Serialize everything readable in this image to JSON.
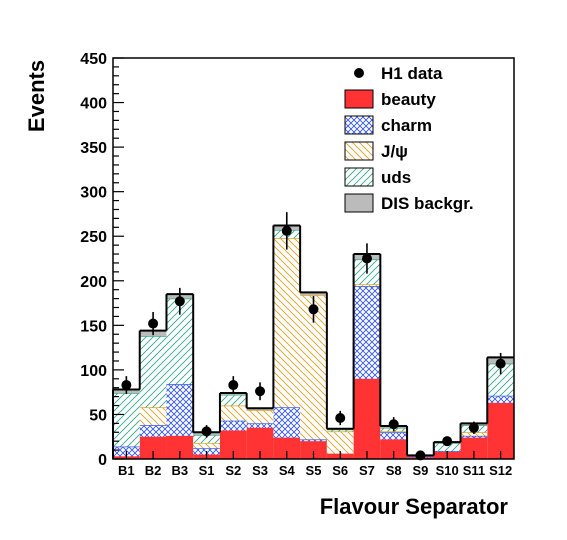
{
  "chart_data": {
    "type": "bar",
    "stacked": true,
    "title": "",
    "xlabel": "Flavour Separator",
    "ylabel": "Events",
    "ylim": [
      0,
      450
    ],
    "yticks": [
      0,
      50,
      100,
      150,
      200,
      250,
      300,
      350,
      400,
      450
    ],
    "grid": false,
    "legend_position": "top-right",
    "categories": [
      "B1",
      "B2",
      "B3",
      "S1",
      "S2",
      "S3",
      "S4",
      "S5",
      "S6",
      "S7",
      "S8",
      "S9",
      "S10",
      "S11",
      "S12"
    ],
    "series": [
      {
        "name": "beauty",
        "color": "#ff3333",
        "pattern": "solid",
        "values": [
          3,
          25,
          26,
          5,
          32,
          35,
          24,
          20,
          6,
          90,
          22,
          2,
          8,
          24,
          63
        ]
      },
      {
        "name": "charm",
        "color": "#3355ee",
        "pattern": "crosshatch",
        "values": [
          11,
          13,
          58,
          7,
          11,
          5,
          34,
          2,
          0,
          104,
          8,
          1,
          1,
          2,
          8
        ]
      },
      {
        "name": "J/ψ",
        "color": "#e0a020",
        "pattern": "hatch-down",
        "values": [
          0,
          20,
          0,
          6,
          17,
          15,
          190,
          162,
          25,
          2,
          1,
          0,
          0,
          4,
          0
        ]
      },
      {
        "name": "uds",
        "color": "#33aa88",
        "pattern": "hatch-up",
        "values": [
          60,
          80,
          96,
          9,
          12,
          0,
          9,
          0,
          2,
          28,
          4,
          1,
          9,
          8,
          36
        ]
      },
      {
        "name": "DIS backgr.",
        "color": "#bbbbbb",
        "pattern": "solid",
        "values": [
          4,
          6,
          5,
          3,
          2,
          2,
          5,
          3,
          1,
          6,
          2,
          0,
          1,
          2,
          7
        ]
      }
    ],
    "data_points": {
      "name": "H1 data",
      "values": [
        83,
        152,
        177,
        31,
        83,
        76,
        256,
        168,
        46,
        225,
        39,
        4,
        20,
        35,
        107
      ],
      "errors": [
        10,
        13,
        15,
        7,
        10,
        10,
        21,
        15,
        8,
        17,
        8,
        3,
        5,
        7,
        12
      ]
    }
  }
}
